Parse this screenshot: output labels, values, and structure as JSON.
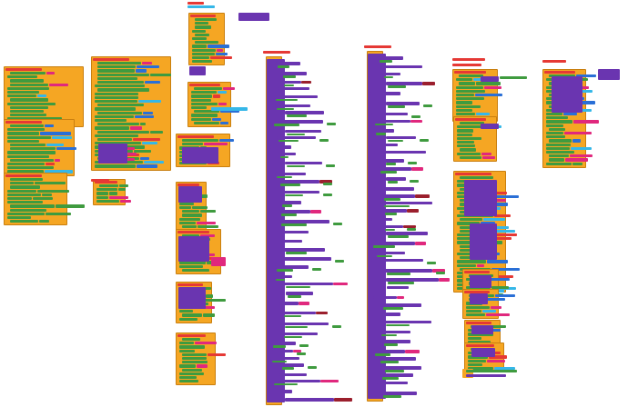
{
  "workspace": {
    "title": "",
    "background": "#ffffff"
  },
  "palette": {
    "event_orange": "#f5a623",
    "event_border": "#c97f0f",
    "procedure_purple": "#6a35b0",
    "text_green": "#3f9b3f",
    "math_blue": "#2a6fd6",
    "light_blue": "#35b7e8",
    "pink": "#e0287d",
    "red": "#e53935",
    "dark_red": "#9b1f2d"
  },
  "icons": {
    "block": "puzzle-block-icon"
  }
}
